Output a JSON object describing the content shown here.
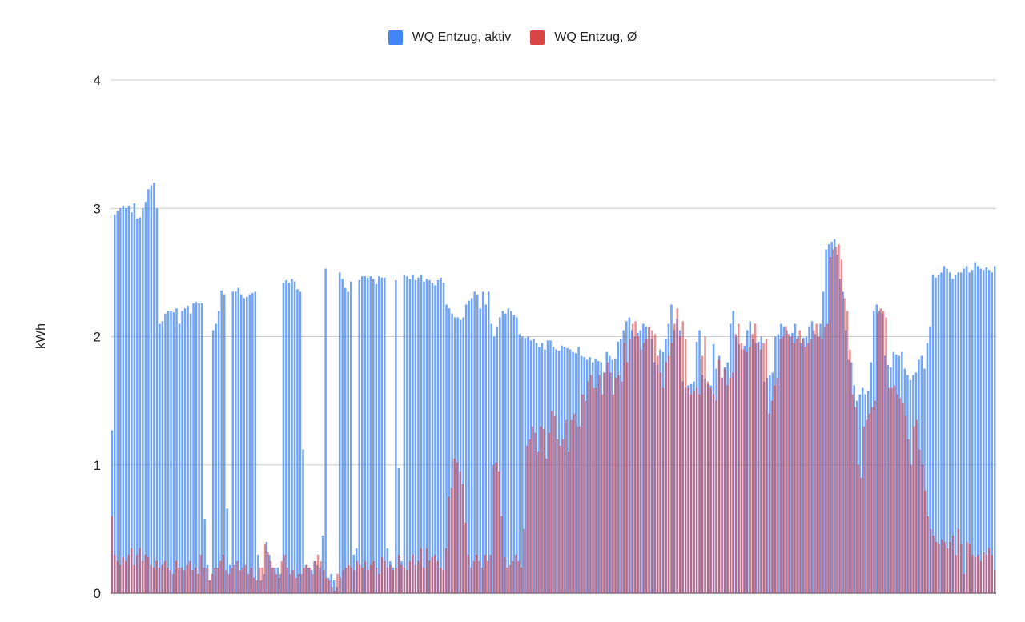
{
  "chart_data": {
    "type": "bar",
    "ylabel": "kWh",
    "ylim": [
      0,
      4
    ],
    "yticks": [
      "0",
      "1",
      "2",
      "3",
      "4"
    ],
    "grid": true,
    "legend_position": "top-center",
    "overlap": true,
    "series": [
      {
        "name": "WQ Entzug, aktiv",
        "color": "#4285F4",
        "values": [
          1.27,
          2.95,
          2.98,
          3.0,
          3.02,
          3.0,
          3.02,
          2.97,
          3.04,
          2.92,
          2.93,
          3.0,
          3.05,
          3.15,
          3.18,
          3.2,
          3.0,
          2.1,
          2.12,
          2.18,
          2.2,
          2.2,
          2.19,
          2.22,
          2.1,
          2.2,
          2.22,
          2.24,
          2.18,
          2.26,
          2.27,
          2.26,
          2.26,
          0.58,
          0.22,
          0.1,
          2.05,
          2.1,
          2.2,
          2.36,
          2.33,
          0.66,
          0.22,
          2.35,
          2.35,
          2.38,
          2.33,
          2.3,
          2.31,
          2.33,
          2.34,
          2.35,
          0.3,
          0.1,
          0.15,
          0.4,
          0.3,
          0.2,
          0.2,
          0.2,
          0.15,
          2.42,
          2.44,
          2.42,
          2.45,
          2.43,
          2.37,
          2.35,
          1.12,
          0.22,
          0.2,
          0.18,
          0.25,
          0.22,
          0.2,
          0.45,
          2.53,
          0.12,
          0.15,
          0.1,
          0.05,
          2.5,
          2.45,
          2.38,
          2.35,
          2.43,
          0.3,
          0.35,
          2.44,
          2.47,
          2.47,
          2.46,
          2.47,
          2.45,
          2.41,
          2.47,
          2.46,
          2.46,
          0.35,
          0.25,
          0.2,
          2.44,
          0.98,
          0.25,
          2.48,
          2.47,
          2.45,
          2.48,
          2.44,
          2.46,
          2.48,
          2.43,
          2.45,
          2.44,
          2.42,
          2.4,
          2.44,
          2.46,
          2.42,
          2.25,
          2.22,
          2.18,
          2.15,
          2.15,
          2.13,
          2.15,
          2.25,
          2.28,
          2.3,
          2.35,
          2.33,
          2.22,
          2.35,
          2.25,
          2.35,
          2.1,
          2.0,
          2.08,
          2.15,
          2.2,
          2.18,
          2.22,
          2.2,
          2.17,
          2.15,
          2.02,
          2.0,
          1.99,
          2.0,
          1.97,
          1.98,
          1.95,
          1.92,
          1.95,
          1.9,
          1.97,
          1.97,
          1.92,
          1.9,
          1.89,
          1.93,
          1.92,
          1.91,
          1.9,
          1.88,
          1.87,
          1.92,
          1.85,
          1.84,
          1.82,
          1.84,
          1.8,
          1.83,
          1.81,
          1.8,
          1.72,
          1.88,
          1.85,
          1.82,
          1.83,
          1.96,
          1.98,
          2.05,
          2.12,
          2.15,
          2.05,
          2.0,
          2.03,
          2.05,
          2.1,
          2.08,
          2.07,
          1.98,
          1.8,
          1.78,
          1.9,
          1.88,
          1.98,
          2.1,
          2.25,
          2.05,
          2.14,
          2.05,
          1.65,
          1.6,
          1.62,
          1.63,
          1.65,
          1.96,
          2.05,
          1.7,
          1.67,
          1.63,
          1.62,
          1.94,
          1.75,
          1.85,
          1.68,
          1.76,
          1.8,
          2.1,
          2.2,
          2.0,
          1.94,
          1.9,
          1.93,
          2.05,
          2.12,
          1.98,
          1.95,
          1.96,
          2.0,
          1.65,
          1.68,
          1.7,
          1.72,
          2.0,
          2.02,
          2.1,
          2.08,
          2.05,
          2.0,
          2.03,
          2.1,
          2.0,
          1.95,
          1.99,
          2.0,
          2.08,
          2.12,
          2.02,
          2.0,
          2.1,
          2.35,
          2.68,
          2.72,
          2.74,
          2.76,
          2.64,
          2.45,
          2.35,
          2.05,
          1.82,
          1.8,
          1.62,
          1.5,
          1.55,
          1.6,
          1.55,
          1.58,
          1.8,
          2.2,
          2.25,
          2.2,
          2.18,
          1.85,
          1.78,
          1.76,
          1.88,
          1.86,
          1.85,
          1.88,
          1.75,
          1.7,
          1.66,
          1.7,
          1.72,
          1.82,
          1.85,
          1.75,
          1.95,
          2.08,
          2.48,
          2.46,
          2.48,
          2.5,
          2.55,
          2.53,
          2.5,
          2.45,
          2.48,
          2.5,
          2.5,
          2.53,
          2.55,
          2.5,
          2.52,
          2.58,
          2.55,
          2.53,
          2.52,
          2.54,
          2.52,
          2.5,
          2.55
        ]
      },
      {
        "name": "WQ Entzug, Ø",
        "color": "#D94545",
        "values": [
          0.6,
          0.3,
          0.25,
          0.22,
          0.28,
          0.25,
          0.3,
          0.35,
          0.22,
          0.3,
          0.35,
          0.25,
          0.3,
          0.28,
          0.22,
          0.2,
          0.25,
          0.2,
          0.22,
          0.25,
          0.2,
          0.18,
          0.15,
          0.25,
          0.2,
          0.2,
          0.18,
          0.22,
          0.25,
          0.18,
          0.2,
          0.15,
          0.3,
          0.2,
          0.2,
          0.1,
          0.15,
          0.2,
          0.2,
          0.25,
          0.3,
          0.18,
          0.15,
          0.2,
          0.22,
          0.25,
          0.18,
          0.2,
          0.22,
          0.15,
          0.2,
          0.12,
          0.1,
          0.2,
          0.2,
          0.38,
          0.32,
          0.25,
          0.2,
          0.15,
          0.12,
          0.25,
          0.3,
          0.2,
          0.15,
          0.18,
          0.12,
          0.15,
          0.15,
          0.2,
          0.22,
          0.2,
          0.15,
          0.25,
          0.3,
          0.25,
          0.18,
          0.12,
          0.1,
          0.05,
          0.02,
          0.15,
          0.12,
          0.18,
          0.2,
          0.22,
          0.2,
          0.18,
          0.25,
          0.22,
          0.2,
          0.25,
          0.18,
          0.22,
          0.25,
          0.2,
          0.15,
          0.28,
          0.25,
          0.2,
          0.22,
          0.18,
          0.2,
          0.3,
          0.22,
          0.2,
          0.18,
          0.25,
          0.3,
          0.22,
          0.25,
          0.35,
          0.2,
          0.35,
          0.25,
          0.28,
          0.3,
          0.25,
          0.2,
          0.18,
          0.35,
          0.75,
          0.82,
          1.05,
          1.02,
          0.95,
          0.85,
          0.55,
          0.3,
          0.2,
          0.25,
          0.3,
          0.25,
          0.2,
          0.3,
          0.25,
          0.3,
          1.0,
          1.02,
          0.95,
          0.6,
          0.28,
          0.2,
          0.22,
          0.25,
          0.3,
          0.25,
          0.2,
          0.5,
          1.15,
          1.2,
          1.3,
          1.25,
          1.1,
          1.3,
          1.28,
          1.05,
          1.25,
          1.42,
          1.38,
          1.2,
          1.15,
          1.2,
          1.35,
          1.1,
          1.35,
          1.4,
          1.3,
          1.3,
          1.55,
          1.5,
          1.65,
          1.7,
          1.6,
          1.6,
          1.7,
          1.55,
          1.72,
          1.8,
          1.72,
          1.55,
          1.68,
          1.7,
          1.65,
          1.95,
          1.8,
          1.98,
          2.1,
          2.12,
          2.0,
          1.9,
          1.95,
          1.98,
          2.08,
          2.05,
          2.02,
          1.85,
          1.72,
          1.6,
          1.8,
          1.85,
          1.95,
          2.1,
          2.22,
          2.0,
          2.12,
          1.98,
          1.6,
          1.55,
          1.58,
          1.6,
          1.55,
          1.85,
          2.0,
          1.65,
          1.6,
          1.55,
          1.5,
          1.82,
          1.68,
          1.75,
          1.62,
          1.68,
          1.72,
          2.02,
          2.1,
          1.95,
          1.9,
          1.88,
          1.92,
          2.02,
          2.1,
          1.95,
          1.9,
          1.95,
          1.98,
          1.4,
          1.5,
          1.62,
          1.68,
          1.98,
          2.0,
          2.08,
          2.02,
          2.0,
          1.95,
          1.98,
          2.05,
          1.98,
          1.92,
          1.95,
          1.98,
          2.05,
          2.1,
          2.0,
          1.98,
          2.08,
          2.1,
          2.62,
          2.68,
          2.7,
          2.72,
          2.6,
          2.3,
          2.2,
          1.9,
          1.55,
          1.45,
          1.0,
          0.9,
          1.3,
          1.35,
          1.4,
          1.45,
          1.5,
          2.18,
          2.22,
          2.2,
          2.15,
          1.6,
          1.6,
          1.62,
          1.55,
          1.52,
          1.48,
          1.38,
          1.2,
          1.0,
          1.3,
          1.35,
          1.12,
          1.0,
          0.8,
          0.6,
          0.5,
          0.45,
          0.4,
          0.38,
          0.42,
          0.4,
          0.35,
          0.4,
          0.45,
          0.3,
          0.5,
          0.38,
          0.15,
          0.4,
          0.38,
          0.3,
          0.28,
          0.3,
          0.25,
          0.32,
          0.3,
          0.35,
          0.3,
          0.18
        ]
      }
    ]
  }
}
